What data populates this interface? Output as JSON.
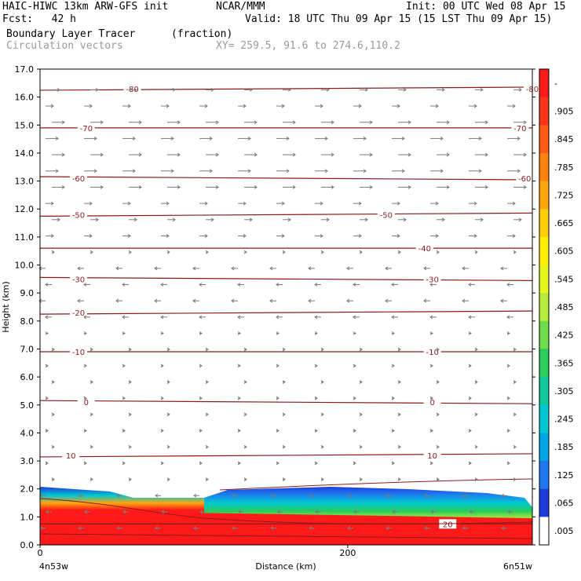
{
  "header": {
    "title": "HAIC-HIWC 13km ARW-GFS init",
    "org": "NCAR/MMM",
    "init": "Init: 00 UTC Wed 08 Apr 15",
    "fcst": "Fcst:   42 h",
    "valid": "Valid: 18 UTC Thu 09 Apr 15 (15 LST Thu 09 Apr 15)",
    "field": "Boundary Layer Tracer",
    "units": "(fraction)",
    "vectors": "Circulation vectors",
    "xy": "XY= 259.5, 91.6 to 274.6,110.2"
  },
  "chart_data": {
    "type": "heatmap",
    "ylabel": "Height (km)",
    "xlabel": "Distance (km)",
    "x_left_label": "4n53w",
    "x_right_label": "6n51w",
    "ylim": [
      0,
      17
    ],
    "xlim": [
      0,
      320
    ],
    "y_ticks": [
      "0.0",
      "1.0",
      "2.0",
      "3.0",
      "4.0",
      "5.0",
      "6.0",
      "7.0",
      "8.0",
      "9.0",
      "10.0",
      "11.0",
      "12.0",
      "13.0",
      "14.0",
      "15.0",
      "16.0",
      "17.0"
    ],
    "x_ticks": [
      {
        "value": 0,
        "label": "0"
      },
      {
        "value": 200,
        "label": "200"
      }
    ],
    "colorbar_labels": [
      "-",
      ".905",
      ".845",
      ".785",
      ".725",
      ".665",
      ".605",
      ".545",
      ".485",
      ".425",
      ".365",
      ".305",
      ".245",
      ".185",
      ".125",
      ".065",
      ".005"
    ],
    "colorbar_colors": [
      "#ff1a1a",
      "#ff3319",
      "#ff5a14",
      "#ff8210",
      "#ffa50d",
      "#ffcd0a",
      "#ffee00",
      "#e6f51e",
      "#b4eb3c",
      "#6edc4b",
      "#28cd5a",
      "#0fc89b",
      "#00c8d2",
      "#00a5e6",
      "#1e78f0",
      "#1e3cdc",
      "#ffffff"
    ],
    "temperature_contours": [
      {
        "label": "-80",
        "y": 16.3,
        "label_x": [
          60,
          320
        ]
      },
      {
        "label": "-70",
        "y": 14.9,
        "label_x": [
          30,
          312
        ]
      },
      {
        "label": "-60",
        "y": 13.1,
        "label_x": [
          25,
          315
        ]
      },
      {
        "label": "-50",
        "y": 11.8,
        "label_x": [
          25,
          225
        ]
      },
      {
        "label": "-40",
        "y": 10.6,
        "label_x": [
          250
        ]
      },
      {
        "label": "-30",
        "y": 9.5,
        "label_x": [
          25,
          255
        ]
      },
      {
        "label": "-20",
        "y": 8.3,
        "label_x": [
          25
        ]
      },
      {
        "label": "-10",
        "y": 6.9,
        "label_x": [
          25,
          255
        ]
      },
      {
        "label": "0",
        "y": 5.1,
        "label_x": [
          30,
          255
        ]
      },
      {
        "label": "10",
        "y": 3.2,
        "label_x": [
          20,
          255
        ]
      },
      {
        "label": "20",
        "y": 0.75,
        "label_x": [
          265
        ]
      }
    ]
  }
}
